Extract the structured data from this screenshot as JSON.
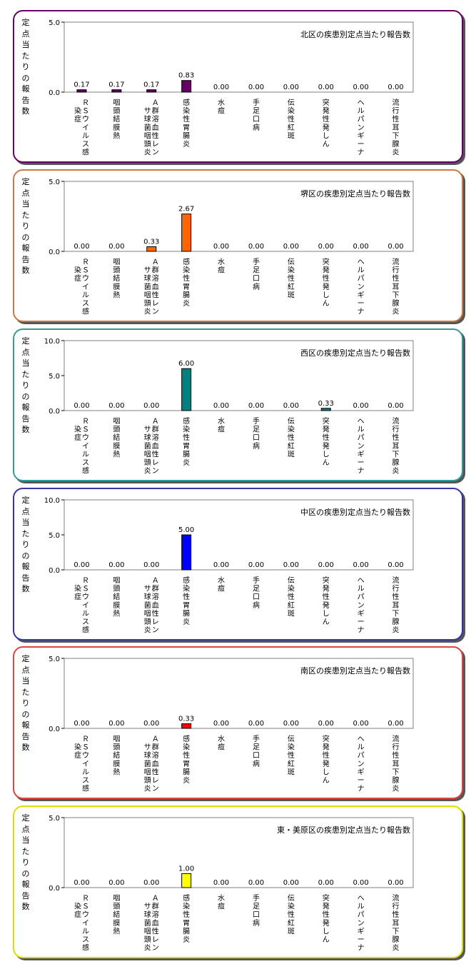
{
  "chart_data": [
    {
      "type": "bar",
      "title": "北区の疾患別定点当たり報告数",
      "ylabel": "定点当たりの報告数",
      "xlabel": "",
      "ylim": [
        0,
        5.0
      ],
      "yticks": [
        "5.0",
        "0.0"
      ],
      "bar_color": "#660066",
      "border_color": "#660066",
      "categories": [
        "ＲＳウイルス感染症",
        "咽頭結膜熱",
        "Ａ群溶血性レンサ球菌咽頭炎",
        "感染性胃腸炎",
        "水痘",
        "手足口病",
        "伝染性紅斑",
        "突発性発しん",
        "ヘルパンギーナ",
        "流行性耳下腺炎"
      ],
      "values": [
        0.17,
        0.17,
        0.17,
        0.83,
        0.0,
        0.0,
        0.0,
        0.0,
        0.0,
        0.0
      ],
      "value_labels": [
        "0.17",
        "0.17",
        "0.17",
        "0.83",
        "0.00",
        "0.00",
        "0.00",
        "0.00",
        "0.00",
        "0.00"
      ]
    },
    {
      "type": "bar",
      "title": "堺区の疾患別定点当たり報告数",
      "ylabel": "定点当たりの報告数",
      "xlabel": "",
      "ylim": [
        0,
        5.0
      ],
      "yticks": [
        "5.0",
        "0.0"
      ],
      "bar_color": "#ff6600",
      "border_color": "#cc7744",
      "categories": [
        "ＲＳウイルス感染症",
        "咽頭結膜熱",
        "Ａ群溶血性レンサ球菌咽頭炎",
        "感染性胃腸炎",
        "水痘",
        "手足口病",
        "伝染性紅斑",
        "突発性発しん",
        "ヘルパンギーナ",
        "流行性耳下腺炎"
      ],
      "values": [
        0.0,
        0.0,
        0.33,
        2.67,
        0.0,
        0.0,
        0.0,
        0.0,
        0.0,
        0.0
      ],
      "value_labels": [
        "0.00",
        "0.00",
        "0.33",
        "2.67",
        "0.00",
        "0.00",
        "0.00",
        "0.00",
        "0.00",
        "0.00"
      ]
    },
    {
      "type": "bar",
      "title": "西区の疾患別定点当たり報告数",
      "ylabel": "定点当たりの報告数",
      "xlabel": "",
      "ylim": [
        0,
        10.0
      ],
      "yticks": [
        "10.0",
        "5.0",
        "0.0"
      ],
      "bar_color": "#008080",
      "border_color": "#339999",
      "categories": [
        "ＲＳウイルス感染症",
        "咽頭結膜熱",
        "Ａ群溶血性レンサ球菌咽頭炎",
        "感染性胃腸炎",
        "水痘",
        "手足口病",
        "伝染性紅斑",
        "突発性発しん",
        "ヘルパンギーナ",
        "流行性耳下腺炎"
      ],
      "values": [
        0.0,
        0.0,
        0.0,
        6.0,
        0.0,
        0.0,
        0.0,
        0.33,
        0.0,
        0.0
      ],
      "value_labels": [
        "0.00",
        "0.00",
        "0.00",
        "6.00",
        "0.00",
        "0.00",
        "0.00",
        "0.33",
        "0.00",
        "0.00"
      ]
    },
    {
      "type": "bar",
      "title": "中区の疾患別定点当たり報告数",
      "ylabel": "定点当たりの報告数",
      "xlabel": "",
      "ylim": [
        0,
        10.0
      ],
      "yticks": [
        "10.0",
        "5.0",
        "0.0"
      ],
      "bar_color": "#0000ff",
      "border_color": "#3333aa",
      "categories": [
        "ＲＳウイルス感染症",
        "咽頭結膜熱",
        "Ａ群溶血性レンサ球菌咽頭炎",
        "感染性胃腸炎",
        "水痘",
        "手足口病",
        "伝染性紅斑",
        "突発性発しん",
        "ヘルパンギーナ",
        "流行性耳下腺炎"
      ],
      "values": [
        0.0,
        0.0,
        0.0,
        5.0,
        0.0,
        0.0,
        0.0,
        0.0,
        0.0,
        0.0
      ],
      "value_labels": [
        "0.00",
        "0.00",
        "0.00",
        "5.00",
        "0.00",
        "0.00",
        "0.00",
        "0.00",
        "0.00",
        "0.00"
      ]
    },
    {
      "type": "bar",
      "title": "南区の疾患別定点当たり報告数",
      "ylabel": "定点当たりの報告数",
      "xlabel": "",
      "ylim": [
        0,
        5.0
      ],
      "yticks": [
        "5.0",
        "0.0"
      ],
      "bar_color": "#ff0000",
      "border_color": "#dd4444",
      "categories": [
        "ＲＳウイルス感染症",
        "咽頭結膜熱",
        "Ａ群溶血性レンサ球菌咽頭炎",
        "感染性胃腸炎",
        "水痘",
        "手足口病",
        "伝染性紅斑",
        "突発性発しん",
        "ヘルパンギーナ",
        "流行性耳下腺炎"
      ],
      "values": [
        0.0,
        0.0,
        0.0,
        0.33,
        0.0,
        0.0,
        0.0,
        0.0,
        0.0,
        0.0
      ],
      "value_labels": [
        "0.00",
        "0.00",
        "0.00",
        "0.33",
        "0.00",
        "0.00",
        "0.00",
        "0.00",
        "0.00",
        "0.00"
      ]
    },
    {
      "type": "bar",
      "title": "東・美原区の疾患別定点当たり報告数",
      "ylabel": "定点当たりの報告数",
      "xlabel": "",
      "ylim": [
        0,
        5.0
      ],
      "yticks": [
        "5.0",
        "0.0"
      ],
      "bar_color": "#ffff00",
      "border_color": "#dddd00",
      "categories": [
        "ＲＳウイルス感染症",
        "咽頭結膜熱",
        "Ａ群溶血性レンサ球菌咽頭炎",
        "感染性胃腸炎",
        "水痘",
        "手足口病",
        "伝染性紅斑",
        "突発性発しん",
        "ヘルパンギーナ",
        "流行性耳下腺炎"
      ],
      "values": [
        0.0,
        0.0,
        0.0,
        1.0,
        0.0,
        0.0,
        0.0,
        0.0,
        0.0,
        0.0
      ],
      "value_labels": [
        "0.00",
        "0.00",
        "0.00",
        "1.00",
        "0.00",
        "0.00",
        "0.00",
        "0.00",
        "0.00",
        "0.00"
      ]
    }
  ]
}
